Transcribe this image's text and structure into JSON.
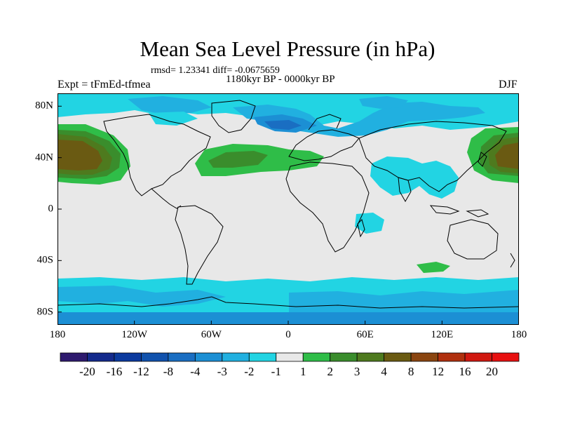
{
  "title": "Mean Sea Level Pressure (in hPa)",
  "stats_line": "rmsd= 1.23341 diff= -0.0675659",
  "period": "1180kyr BP - 0000kyr BP",
  "experiment": "Expt = tFmEd-tfmea",
  "season": "DJF",
  "map": {
    "lon_range": [
      -180,
      180
    ],
    "lat_range": [
      -90,
      90
    ],
    "x_ticks": [
      {
        "value": -180,
        "label": "180"
      },
      {
        "value": -120,
        "label": "120W"
      },
      {
        "value": -60,
        "label": "60W"
      },
      {
        "value": 0,
        "label": "0"
      },
      {
        "value": 60,
        "label": "60E"
      },
      {
        "value": 120,
        "label": "120E"
      },
      {
        "value": 180,
        "label": "180"
      }
    ],
    "y_ticks": [
      {
        "value": 80,
        "label": "80N"
      },
      {
        "value": 40,
        "label": "40N"
      },
      {
        "value": 0,
        "label": "0"
      },
      {
        "value": -40,
        "label": "40S"
      },
      {
        "value": -80,
        "label": "80S"
      }
    ]
  },
  "colorbar": {
    "levels": [
      -20,
      -16,
      -12,
      -8,
      -4,
      -3,
      -2,
      -1,
      1,
      2,
      3,
      4,
      8,
      12,
      16,
      20
    ],
    "labels": [
      "-20",
      "-16",
      "-12",
      "-8",
      "-4",
      "-3",
      "-2",
      "-1",
      "1",
      "2",
      "3",
      "4",
      "8",
      "12",
      "16",
      "20"
    ],
    "colors": [
      "#2e1a6e",
      "#142a8c",
      "#0b3a9e",
      "#1152ad",
      "#1a6ec2",
      "#1c8fd4",
      "#21b0e0",
      "#22d4e3",
      "#e8e8e8",
      "#2fbd48",
      "#3a8d2c",
      "#4e7a1e",
      "#6a5a12",
      "#8a4510",
      "#b0300e",
      "#d01810",
      "#e81010"
    ]
  },
  "colors": {
    "ocean_neutral": "#e8e8e8",
    "coast": "#000000"
  }
}
